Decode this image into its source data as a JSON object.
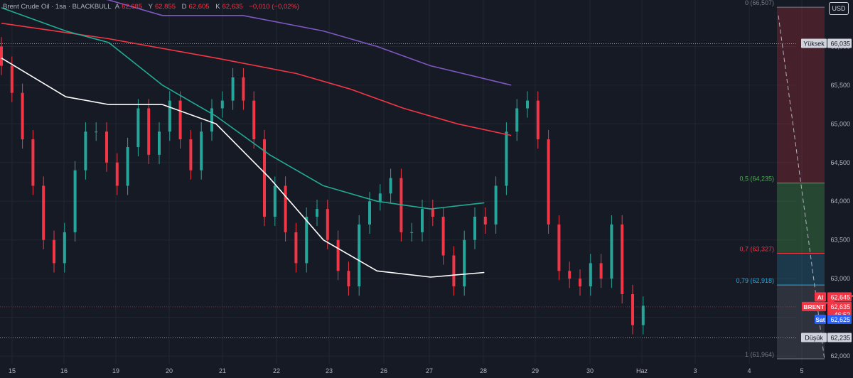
{
  "legend": {
    "symbol": "Brent Crude Oil · 1sa · BLACKBULL",
    "o_label": "A",
    "o": "62,685",
    "h_label": "Y",
    "h": "62,855",
    "l_label": "D",
    "l": "62,605",
    "c_label": "K",
    "c": "62,635",
    "change": "−0,010 (−0,02%)"
  },
  "currency": "USD",
  "colors": {
    "background": "#161a25",
    "up": "#26a69a",
    "down": "#f23645",
    "trendline": "#f23645",
    "ma_white": "#ffffff",
    "ma_teal": "#22ab94",
    "ma_red": "#f23645",
    "ma_purple": "#7e57c2",
    "fib_green": "#4caf50",
    "fib_red": "#f23645",
    "fib_blue": "#2ea8d8"
  },
  "chart_data": {
    "type": "candlestick",
    "timeframe": "1h",
    "x_tick_labels": [
      "15",
      "16",
      "19",
      "20",
      "21",
      "22",
      "23",
      "26",
      "27",
      "28",
      "29",
      "30",
      "Haz",
      "3",
      "4",
      "5"
    ],
    "ylim": [
      61.9,
      66.6
    ],
    "y_tick_labels": [
      "62,000",
      "62,500",
      "63,000",
      "63,500",
      "64,000",
      "64,500",
      "65,000",
      "65,500",
      "66,000"
    ],
    "y_ticks": [
      62.0,
      62.5,
      63.0,
      63.5,
      64.0,
      64.5,
      65.0,
      65.5,
      66.0
    ],
    "ohlc_close_approx": [
      65.75,
      65.4,
      64.8,
      64.2,
      63.5,
      63.2,
      63.6,
      64.4,
      64.9,
      64.9,
      64.5,
      64.2,
      64.7,
      65.2,
      64.6,
      64.9,
      65.3,
      64.8,
      64.4,
      64.9,
      65.2,
      65.3,
      65.6,
      65.3,
      64.8,
      63.8,
      64.2,
      63.6,
      63.2,
      63.8,
      63.9,
      63.5,
      63.1,
      62.9,
      63.7,
      64.0,
      64.1,
      64.3,
      63.6,
      63.6,
      63.9,
      63.8,
      63.3,
      62.9,
      63.5,
      63.8,
      63.7,
      64.2,
      64.9,
      65.2,
      65.3,
      64.8,
      63.7,
      63.1,
      63.0,
      62.9,
      63.2,
      63.0,
      63.7,
      62.8,
      62.4,
      62.65
    ],
    "overlays": {
      "ma_white": [
        [
          0,
          65.85
        ],
        [
          12,
          65.35
        ],
        [
          20,
          65.25
        ],
        [
          30,
          65.25
        ],
        [
          40,
          65.0
        ],
        [
          50,
          64.3
        ],
        [
          60,
          63.5
        ],
        [
          70,
          63.1
        ],
        [
          80,
          63.02
        ],
        [
          90,
          63.08
        ]
      ],
      "ma_teal": [
        [
          0,
          66.5
        ],
        [
          12,
          66.2
        ],
        [
          20,
          66.05
        ],
        [
          30,
          65.5
        ],
        [
          40,
          65.1
        ],
        [
          50,
          64.6
        ],
        [
          60,
          64.2
        ],
        [
          70,
          64.0
        ],
        [
          80,
          63.9
        ],
        [
          90,
          63.98
        ]
      ],
      "ma_red": [
        [
          0,
          66.3
        ],
        [
          20,
          66.1
        ],
        [
          40,
          65.85
        ],
        [
          55,
          65.65
        ],
        [
          65,
          65.45
        ],
        [
          75,
          65.2
        ],
        [
          85,
          65.0
        ],
        [
          95,
          64.85
        ]
      ],
      "ma_purple": [
        [
          0,
          66.9
        ],
        [
          20,
          66.6
        ],
        [
          30,
          66.4
        ],
        [
          45,
          66.4
        ],
        [
          60,
          66.2
        ],
        [
          70,
          66.0
        ],
        [
          80,
          65.75
        ],
        [
          95,
          65.5
        ]
      ]
    },
    "trendline": [
      [
        33.5,
        65.92
      ],
      [
        126,
        62.68
      ]
    ],
    "horizontal_lines": [
      {
        "label": "Yüksek",
        "value": "66,035",
        "y": 66.035
      },
      {
        "label": "Düşük",
        "value": "62,235",
        "y": 62.235
      }
    ],
    "fib_levels": [
      {
        "label": "0 (66,507)",
        "value": 66.507
      },
      {
        "label": "0,5 (64,235)",
        "value": 64.235
      },
      {
        "label": "0,7 (63,327)",
        "value": 63.327
      },
      {
        "label": "0,79 (62,918)",
        "value": 62.918
      },
      {
        "label": "1 (61,964)",
        "value": 61.964
      }
    ],
    "price_tags": [
      {
        "label": "Al",
        "value": "62,645"
      },
      {
        "label": "BRENT",
        "value": "62,635",
        "countdown": "46:52"
      },
      {
        "label": "Sat",
        "value": "62,625"
      }
    ]
  }
}
